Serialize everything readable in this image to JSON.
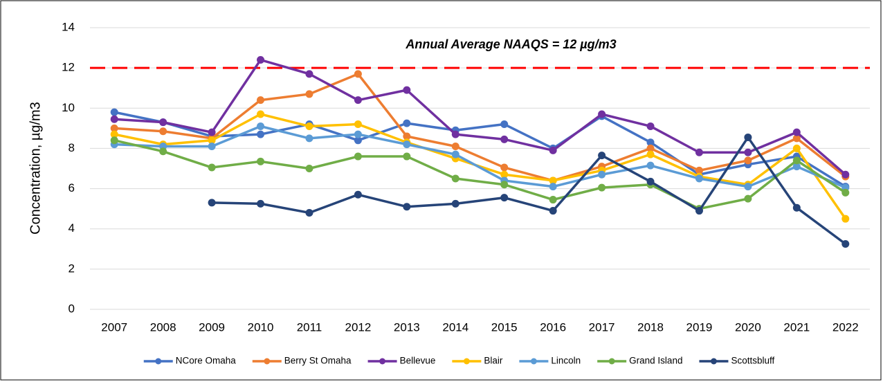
{
  "chart_data": {
    "type": "line",
    "y_label": "Concentration, µg/m3",
    "categories": [
      "2007",
      "2008",
      "2009",
      "2010",
      "2011",
      "2012",
      "2013",
      "2014",
      "2015",
      "2016",
      "2017",
      "2018",
      "2019",
      "2020",
      "2021",
      "2022"
    ],
    "ylim": [
      0,
      14
    ],
    "yticks": [
      0,
      2,
      4,
      6,
      8,
      10,
      12,
      14
    ],
    "grid": true,
    "reference_line": {
      "value": 12,
      "label": "Annual Average NAAQS = 12 µg/m3",
      "color": "#ff0000"
    },
    "legend": "bottom",
    "series": [
      {
        "name": "NCore Omaha",
        "color": "#4472c4",
        "values": [
          9.8,
          9.3,
          8.6,
          8.7,
          9.2,
          8.4,
          9.25,
          8.9,
          9.2,
          8.0,
          9.6,
          8.3,
          6.7,
          7.2,
          7.6,
          6.1
        ]
      },
      {
        "name": "Berry St Omaha",
        "color": "#ed7d31",
        "values": [
          9.0,
          8.85,
          8.5,
          10.4,
          10.7,
          11.7,
          8.6,
          8.1,
          7.05,
          6.4,
          7.1,
          8.0,
          6.9,
          7.4,
          8.5,
          6.6
        ]
      },
      {
        "name": "Bellevue",
        "color": "#7030a0",
        "values": [
          9.45,
          9.3,
          8.8,
          12.4,
          11.7,
          10.4,
          10.9,
          8.7,
          8.45,
          7.9,
          9.7,
          9.1,
          7.8,
          7.8,
          8.8,
          6.7
        ]
      },
      {
        "name": "Blair",
        "color": "#ffc000",
        "values": [
          8.7,
          8.2,
          8.4,
          9.7,
          9.1,
          9.2,
          8.3,
          7.5,
          6.7,
          6.4,
          6.9,
          7.7,
          6.6,
          6.2,
          8.0,
          4.5
        ]
      },
      {
        "name": "Lincoln",
        "color": "#5b9bd5",
        "values": [
          8.2,
          8.1,
          8.1,
          9.1,
          8.5,
          8.7,
          8.2,
          7.7,
          6.4,
          6.1,
          6.7,
          7.15,
          6.5,
          6.1,
          7.1,
          6.05
        ]
      },
      {
        "name": "Grand Island",
        "color": "#70ad47",
        "values": [
          8.4,
          7.85,
          7.05,
          7.35,
          7.0,
          7.6,
          7.6,
          6.5,
          6.2,
          5.45,
          6.05,
          6.2,
          5.0,
          5.5,
          7.4,
          5.8
        ]
      },
      {
        "name": "Scottsbluff",
        "color": "#264478",
        "values": [
          null,
          null,
          5.3,
          5.25,
          4.8,
          5.7,
          5.1,
          5.25,
          5.55,
          4.9,
          7.65,
          6.35,
          4.9,
          8.55,
          5.05,
          3.25
        ]
      }
    ]
  }
}
